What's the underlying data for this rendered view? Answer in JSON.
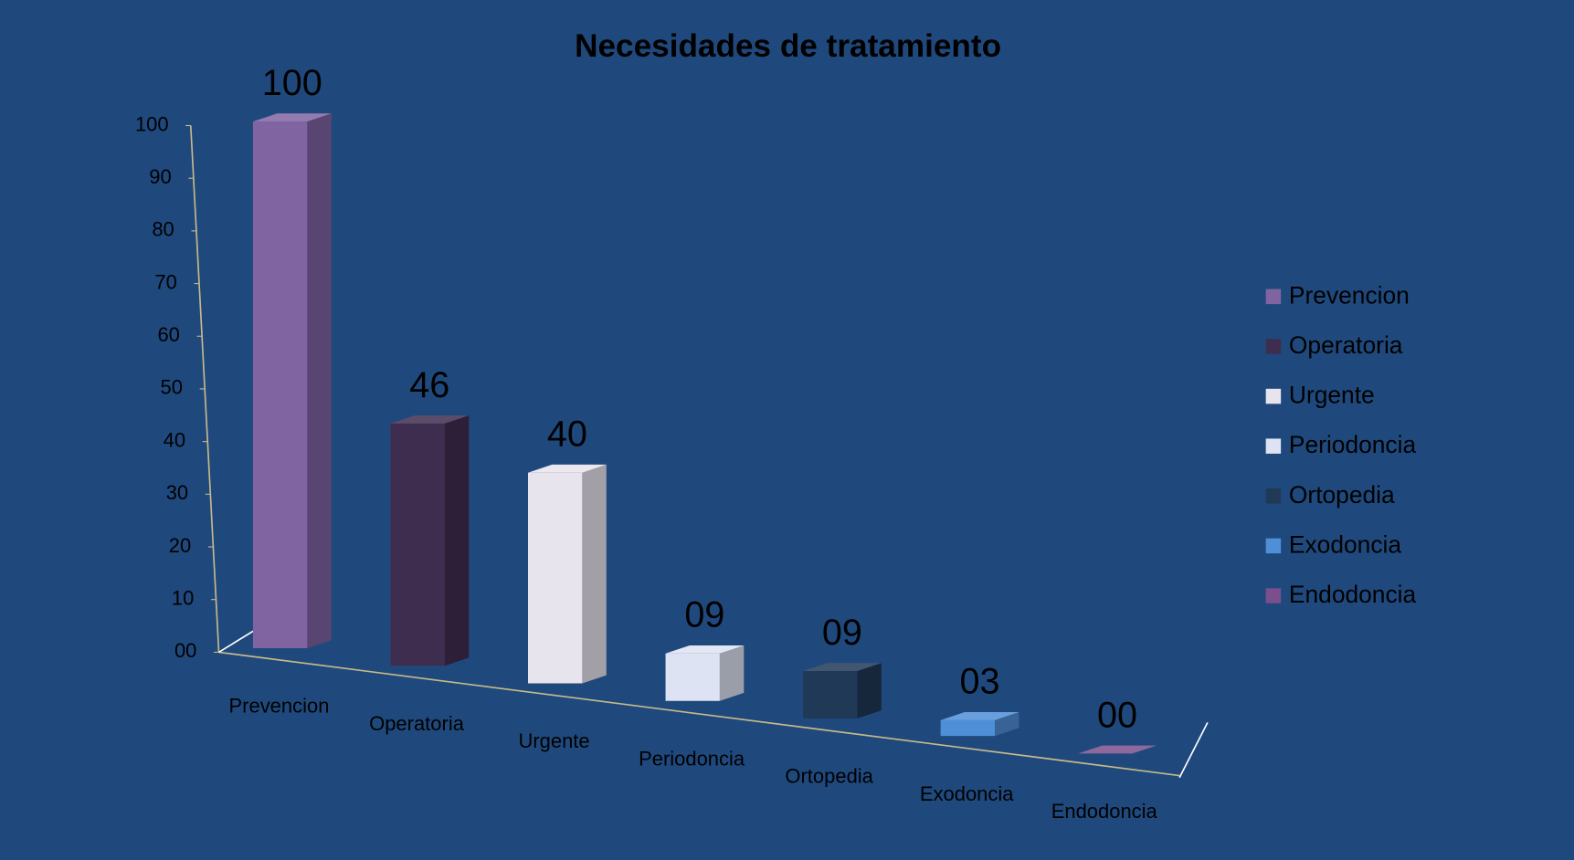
{
  "chart_data": {
    "type": "bar3d",
    "title": "Necesidades de tratamiento",
    "categories": [
      "Prevencion",
      "Operatoria",
      "Urgente",
      "Periodoncia",
      "Ortopedia",
      "Exodoncia",
      "Endodoncia"
    ],
    "values": [
      100,
      46,
      40,
      9,
      9,
      3,
      0
    ],
    "value_labels": [
      "100",
      "46",
      "40",
      "09",
      "09",
      "03",
      "00"
    ],
    "colors": [
      "#8064a2",
      "#3f2d4f",
      "#e8e4ee",
      "#dde3f3",
      "#203957",
      "#4f8fd8",
      "#7b4f8c"
    ],
    "ylim": [
      0,
      100
    ],
    "yticks": [
      {
        "value": 0,
        "label": "00"
      },
      10,
      20,
      30,
      40,
      50,
      60,
      70,
      80,
      90,
      100
    ],
    "legend": "right"
  }
}
